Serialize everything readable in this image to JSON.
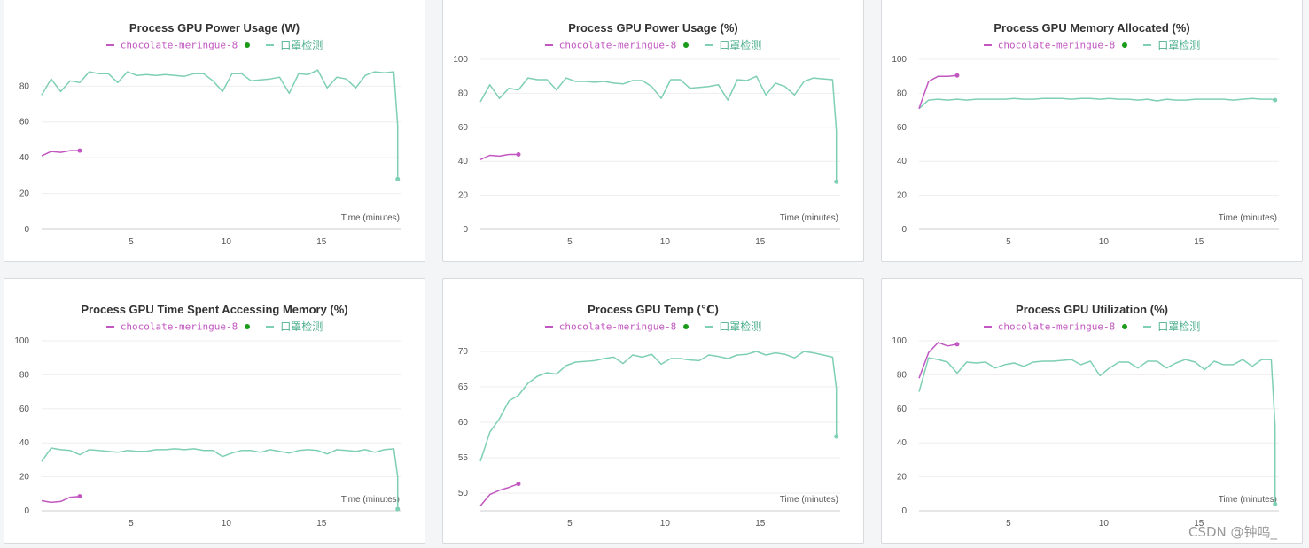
{
  "colors": {
    "run_a": "#c157c0",
    "run_b": "#7ecfb3",
    "live_dot": "#1a9c1a",
    "grid": "#eeeeee",
    "axis": "#cccccc"
  },
  "legend": {
    "series_a": "chocolate-meringue-8",
    "series_b": "口罩检测"
  },
  "watermark": "CSDN @钟鸣_",
  "chart_data": [
    {
      "type": "line",
      "title": "Process GPU Power Usage (W)",
      "xlabel": "Time (minutes)",
      "xlim": [
        0.3,
        19.2
      ],
      "xticks": [
        5,
        10,
        15
      ],
      "ylim": [
        0,
        95
      ],
      "yticks": [
        0,
        20,
        40,
        60,
        80
      ],
      "series": [
        {
          "name": "chocolate-meringue-8",
          "x": [
            0.3,
            0.8,
            1.3,
            1.8,
            2.3
          ],
          "y": [
            41,
            43.5,
            43,
            44,
            44
          ]
        },
        {
          "name": "口罩检测",
          "x": [
            0.3,
            0.8,
            1.3,
            1.8,
            2.3,
            2.8,
            3.3,
            3.8,
            4.3,
            4.8,
            5.3,
            5.8,
            6.3,
            6.8,
            7.3,
            7.8,
            8.3,
            8.8,
            9.3,
            9.8,
            10.3,
            10.8,
            11.3,
            11.8,
            12.3,
            12.8,
            13.3,
            13.8,
            14.3,
            14.8,
            15.3,
            15.8,
            16.3,
            16.8,
            17.3,
            17.8,
            18.3,
            18.8,
            19.0,
            19.0
          ],
          "y": [
            75,
            84,
            77,
            83,
            82,
            88,
            87,
            87,
            82,
            88,
            86,
            86.5,
            86,
            86.5,
            86,
            85.5,
            87,
            87,
            83,
            77,
            87,
            87,
            83,
            83.5,
            84,
            85,
            76,
            87,
            86.5,
            89,
            79,
            85,
            84,
            79,
            86,
            88,
            87.5,
            88,
            58,
            28
          ]
        }
      ]
    },
    {
      "type": "line",
      "title": "Process GPU Power Usage (%)",
      "xlabel": "Time (minutes)",
      "xlim": [
        0.3,
        19.2
      ],
      "xticks": [
        5,
        10,
        15
      ],
      "ylim": [
        0,
        100
      ],
      "yticks": [
        0,
        20,
        40,
        60,
        80,
        100
      ],
      "series": [
        {
          "name": "chocolate-meringue-8",
          "x": [
            0.3,
            0.8,
            1.3,
            1.8,
            2.3
          ],
          "y": [
            41,
            43.5,
            43,
            44,
            44
          ]
        },
        {
          "name": "口罩检测",
          "x": [
            0.3,
            0.8,
            1.3,
            1.8,
            2.3,
            2.8,
            3.3,
            3.8,
            4.3,
            4.8,
            5.3,
            5.8,
            6.3,
            6.8,
            7.3,
            7.8,
            8.3,
            8.8,
            9.3,
            9.8,
            10.3,
            10.8,
            11.3,
            11.8,
            12.3,
            12.8,
            13.3,
            13.8,
            14.3,
            14.8,
            15.3,
            15.8,
            16.3,
            16.8,
            17.3,
            17.8,
            18.3,
            18.8,
            19.0,
            19.0
          ],
          "y": [
            75,
            85,
            77,
            83,
            82,
            89,
            88,
            88,
            82,
            89,
            87,
            87,
            86.5,
            87,
            86,
            85.5,
            87.5,
            87.5,
            84,
            77,
            88,
            88,
            83,
            83.5,
            84,
            85,
            76,
            88,
            87.5,
            90,
            79,
            86,
            84,
            79,
            87,
            89,
            88.5,
            88,
            58,
            28
          ]
        }
      ]
    },
    {
      "type": "line",
      "title": "Process GPU Memory Allocated (%)",
      "xlabel": "Time (minutes)",
      "xlim": [
        0.3,
        19.2
      ],
      "xticks": [
        5,
        10,
        15
      ],
      "ylim": [
        0,
        100
      ],
      "yticks": [
        0,
        20,
        40,
        60,
        80,
        100
      ],
      "series": [
        {
          "name": "chocolate-meringue-8",
          "x": [
            0.3,
            0.8,
            1.3,
            1.8,
            2.3
          ],
          "y": [
            71,
            87,
            90,
            90,
            90.5
          ]
        },
        {
          "name": "口罩检测",
          "x": [
            0.3,
            0.8,
            1.3,
            1.8,
            2.3,
            2.8,
            3.3,
            3.8,
            4.3,
            4.8,
            5.3,
            5.8,
            6.3,
            6.8,
            7.3,
            7.8,
            8.3,
            8.8,
            9.3,
            9.8,
            10.3,
            10.8,
            11.3,
            11.8,
            12.3,
            12.8,
            13.3,
            13.8,
            14.3,
            14.8,
            15.3,
            15.8,
            16.3,
            16.8,
            17.3,
            17.8,
            18.3,
            18.8,
            19.0
          ],
          "y": [
            71,
            76,
            76.5,
            76,
            76.5,
            76,
            76.5,
            76.5,
            76.5,
            76.5,
            77,
            76.5,
            76.5,
            77,
            77,
            77,
            76.5,
            77,
            77,
            76.5,
            77,
            76.5,
            76.5,
            76,
            76.5,
            75.5,
            76.5,
            76,
            76,
            76.5,
            76.5,
            76.5,
            76.5,
            76,
            76.5,
            77,
            76.5,
            76.5,
            76
          ]
        }
      ]
    },
    {
      "type": "line",
      "title": "Process GPU Time Spent Accessing Memory (%)",
      "xlabel": "Time (minutes)",
      "xlim": [
        0.3,
        19.2
      ],
      "xticks": [
        5,
        10,
        15
      ],
      "ylim": [
        0,
        100
      ],
      "yticks": [
        0,
        20,
        40,
        60,
        80,
        100
      ],
      "series": [
        {
          "name": "chocolate-meringue-8",
          "x": [
            0.3,
            0.8,
            1.3,
            1.8,
            2.3
          ],
          "y": [
            6,
            5,
            5.5,
            8,
            8.5
          ]
        },
        {
          "name": "口罩检测",
          "x": [
            0.3,
            0.8,
            1.3,
            1.8,
            2.3,
            2.8,
            3.3,
            3.8,
            4.3,
            4.8,
            5.3,
            5.8,
            6.3,
            6.8,
            7.3,
            7.8,
            8.3,
            8.8,
            9.3,
            9.8,
            10.3,
            10.8,
            11.3,
            11.8,
            12.3,
            12.8,
            13.3,
            13.8,
            14.3,
            14.8,
            15.3,
            15.8,
            16.3,
            16.8,
            17.3,
            17.8,
            18.3,
            18.8,
            19.0,
            19.0
          ],
          "y": [
            29,
            37,
            36,
            35.5,
            33,
            36,
            35.5,
            35,
            34.5,
            35.5,
            35,
            35,
            36,
            36,
            36.5,
            36,
            36.5,
            35.5,
            35.5,
            32,
            34,
            35.5,
            35.5,
            34.5,
            36,
            35,
            34,
            35.5,
            36,
            35.5,
            33.5,
            36,
            35.5,
            35,
            36,
            34.5,
            36,
            36.5,
            20,
            1
          ]
        }
      ]
    },
    {
      "type": "line",
      "title": "Process GPU Temp (℃)",
      "xlabel": "Time (minutes)",
      "xlim": [
        0.3,
        19.2
      ],
      "xticks": [
        5,
        10,
        15
      ],
      "ylim": [
        47.5,
        71.5
      ],
      "yticks": [
        50,
        55,
        60,
        65,
        70
      ],
      "series": [
        {
          "name": "chocolate-meringue-8",
          "x": [
            0.3,
            0.8,
            1.3,
            1.8,
            2.3
          ],
          "y": [
            48.2,
            49.8,
            50.4,
            50.8,
            51.3
          ]
        },
        {
          "name": "口罩检测",
          "x": [
            0.3,
            0.8,
            1.3,
            1.8,
            2.3,
            2.8,
            3.3,
            3.8,
            4.3,
            4.8,
            5.3,
            5.8,
            6.3,
            6.8,
            7.3,
            7.8,
            8.3,
            8.8,
            9.3,
            9.8,
            10.3,
            10.8,
            11.3,
            11.8,
            12.3,
            12.8,
            13.3,
            13.8,
            14.3,
            14.8,
            15.3,
            15.8,
            16.3,
            16.8,
            17.3,
            17.8,
            18.3,
            18.8,
            19.0,
            19.0
          ],
          "y": [
            54.5,
            58.6,
            60.5,
            63,
            63.8,
            65.5,
            66.5,
            67,
            66.8,
            68,
            68.5,
            68.6,
            68.7,
            69,
            69.2,
            68.3,
            69.5,
            69.2,
            69.6,
            68.2,
            69,
            69,
            68.8,
            68.7,
            69.5,
            69.3,
            69,
            69.5,
            69.6,
            70,
            69.5,
            69.8,
            69.6,
            69.1,
            70,
            69.8,
            69.5,
            69.2,
            64.8,
            58
          ]
        }
      ]
    },
    {
      "type": "line",
      "title": "Process GPU Utilization (%)",
      "xlabel": "Time (minutes)",
      "xlim": [
        0.3,
        19.2
      ],
      "xticks": [
        5,
        10,
        15
      ],
      "ylim": [
        0,
        100
      ],
      "yticks": [
        0,
        20,
        40,
        60,
        80,
        100
      ],
      "series": [
        {
          "name": "chocolate-meringue-8",
          "x": [
            0.3,
            0.8,
            1.3,
            1.8,
            2.3
          ],
          "y": [
            78,
            93,
            99,
            97,
            98
          ]
        },
        {
          "name": "口罩检测",
          "x": [
            0.3,
            0.8,
            1.3,
            1.8,
            2.3,
            2.8,
            3.3,
            3.8,
            4.3,
            4.8,
            5.3,
            5.8,
            6.3,
            6.8,
            7.3,
            7.8,
            8.3,
            8.8,
            9.3,
            9.8,
            10.3,
            10.8,
            11.3,
            11.8,
            12.3,
            12.8,
            13.3,
            13.8,
            14.3,
            14.8,
            15.3,
            15.8,
            16.3,
            16.8,
            17.3,
            17.8,
            18.3,
            18.8,
            19.0,
            19.0
          ],
          "y": [
            70,
            90,
            89,
            87.5,
            81,
            87.5,
            87,
            87.5,
            84,
            86,
            87,
            85,
            87.5,
            88,
            88,
            88.5,
            89,
            86,
            88,
            79.5,
            84,
            87.5,
            87.5,
            84,
            88,
            88,
            84,
            87,
            89,
            87.5,
            83,
            88,
            86,
            86,
            89,
            85,
            89,
            89,
            50,
            4
          ]
        }
      ]
    }
  ]
}
